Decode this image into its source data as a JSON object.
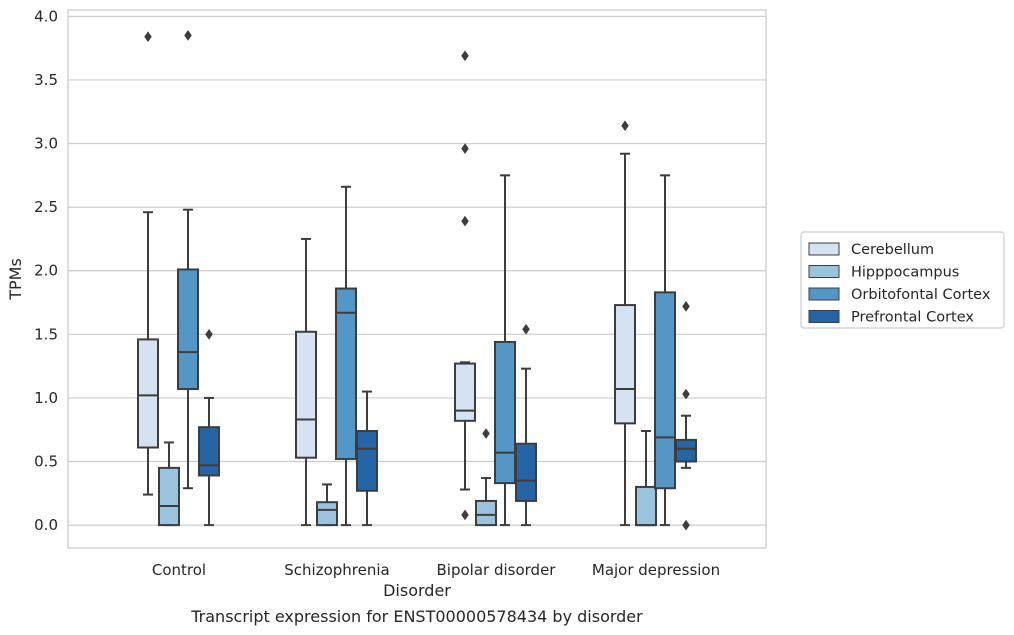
{
  "chart_data": {
    "type": "box",
    "title": "",
    "caption": "Transcript expression for ENST00000578434 by disorder",
    "xlabel": "Disorder",
    "ylabel": "TPMs",
    "ylim": [
      -0.18,
      4.05
    ],
    "yticks": [
      "0.0",
      "0.5",
      "1.0",
      "1.5",
      "2.0",
      "2.5",
      "3.0",
      "3.5",
      "4.0"
    ],
    "grid": "horizontal",
    "legend_position": "right",
    "categories": [
      "Control",
      "Schizophrenia",
      "Bipolar disorder",
      "Major depression"
    ],
    "series": [
      {
        "name": "Cerebellum",
        "color": "#d4e2f1",
        "boxes": [
          {
            "whislo": 0.24,
            "q1": 0.61,
            "med": 1.02,
            "q3": 1.46,
            "whishi": 2.46,
            "fliers": [
              3.84
            ]
          },
          {
            "whislo": 0.0,
            "q1": 0.53,
            "med": 0.83,
            "q3": 1.52,
            "whishi": 2.25,
            "fliers": []
          },
          {
            "whislo": 0.28,
            "q1": 0.82,
            "med": 0.9,
            "q3": 1.27,
            "whishi": 1.28,
            "fliers": [
              3.69,
              2.96,
              2.39,
              0.08
            ]
          },
          {
            "whislo": 0.0,
            "q1": 0.8,
            "med": 1.07,
            "q3": 1.73,
            "whishi": 2.92,
            "fliers": [
              3.14
            ]
          }
        ]
      },
      {
        "name": "Hipppocampus",
        "color": "#9ac3dd",
        "boxes": [
          {
            "whislo": 0.0,
            "q1": 0.0,
            "med": 0.15,
            "q3": 0.45,
            "whishi": 0.65,
            "fliers": []
          },
          {
            "whislo": 0.0,
            "q1": 0.0,
            "med": 0.12,
            "q3": 0.18,
            "whishi": 0.32,
            "fliers": []
          },
          {
            "whislo": 0.0,
            "q1": 0.0,
            "med": 0.08,
            "q3": 0.19,
            "whishi": 0.37,
            "fliers": [
              0.72
            ]
          },
          {
            "whislo": 0.0,
            "q1": 0.0,
            "med": 0.0,
            "q3": 0.3,
            "whishi": 0.74,
            "fliers": []
          }
        ]
      },
      {
        "name": "Orbitofontal Cortex",
        "color": "#5497c6",
        "boxes": [
          {
            "whislo": 0.29,
            "q1": 1.07,
            "med": 1.36,
            "q3": 2.01,
            "whishi": 2.48,
            "fliers": [
              3.85
            ]
          },
          {
            "whislo": 0.0,
            "q1": 0.52,
            "med": 1.67,
            "q3": 1.86,
            "whishi": 2.66,
            "fliers": []
          },
          {
            "whislo": 0.0,
            "q1": 0.33,
            "med": 0.57,
            "q3": 1.44,
            "whishi": 2.75,
            "fliers": []
          },
          {
            "whislo": 0.0,
            "q1": 0.29,
            "med": 0.69,
            "q3": 1.83,
            "whishi": 2.75,
            "fliers": []
          }
        ]
      },
      {
        "name": "Prefrontal Cortex",
        "color": "#2565a5",
        "boxes": [
          {
            "whislo": 0.0,
            "q1": 0.39,
            "med": 0.47,
            "q3": 0.77,
            "whishi": 1.0,
            "fliers": [
              1.5
            ]
          },
          {
            "whislo": 0.0,
            "q1": 0.27,
            "med": 0.6,
            "q3": 0.74,
            "whishi": 1.05,
            "fliers": []
          },
          {
            "whislo": 0.0,
            "q1": 0.19,
            "med": 0.35,
            "q3": 0.64,
            "whishi": 1.23,
            "fliers": [
              1.54
            ]
          },
          {
            "whislo": 0.45,
            "q1": 0.5,
            "med": 0.6,
            "q3": 0.67,
            "whishi": 0.86,
            "fliers": [
              1.72,
              1.03,
              0.0
            ]
          }
        ]
      }
    ]
  }
}
